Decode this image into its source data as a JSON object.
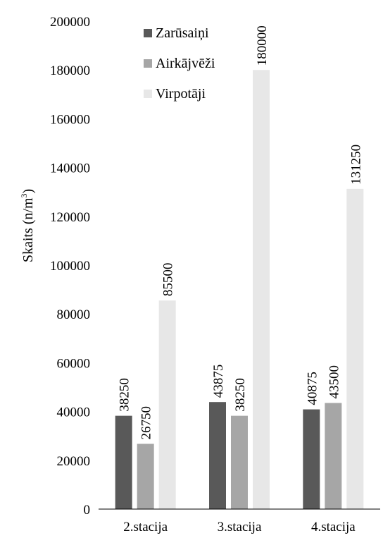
{
  "chart_data": {
    "type": "bar",
    "title": "",
    "xlabel": "",
    "ylabel": "Skaits (n/m",
    "ylabel_sup": "3",
    "ylabel_close": ")",
    "categories": [
      "2.stacija",
      "3.stacija",
      "4.stacija"
    ],
    "series": [
      {
        "name": "Zarūsaiņi",
        "color": "#595959",
        "values": [
          38250,
          43875,
          40875
        ]
      },
      {
        "name": "Airkājvēži",
        "color": "#a6a6a6",
        "values": [
          26750,
          38250,
          43500
        ]
      },
      {
        "name": "Virpotāji",
        "color": "#e7e7e7",
        "values": [
          85500,
          180000,
          131250
        ]
      }
    ],
    "ylim": [
      0,
      200000
    ],
    "yticks": [
      "0",
      "20000",
      "40000",
      "60000",
      "80000",
      "100000",
      "120000",
      "140000",
      "160000",
      "180000",
      "200000"
    ],
    "data_labels": [
      [
        "38250",
        "43875",
        "40875"
      ],
      [
        "26750",
        "38250",
        "43500"
      ],
      [
        "85500",
        "180000",
        "131250"
      ]
    ],
    "grid": false,
    "legend_position": "top-center"
  }
}
